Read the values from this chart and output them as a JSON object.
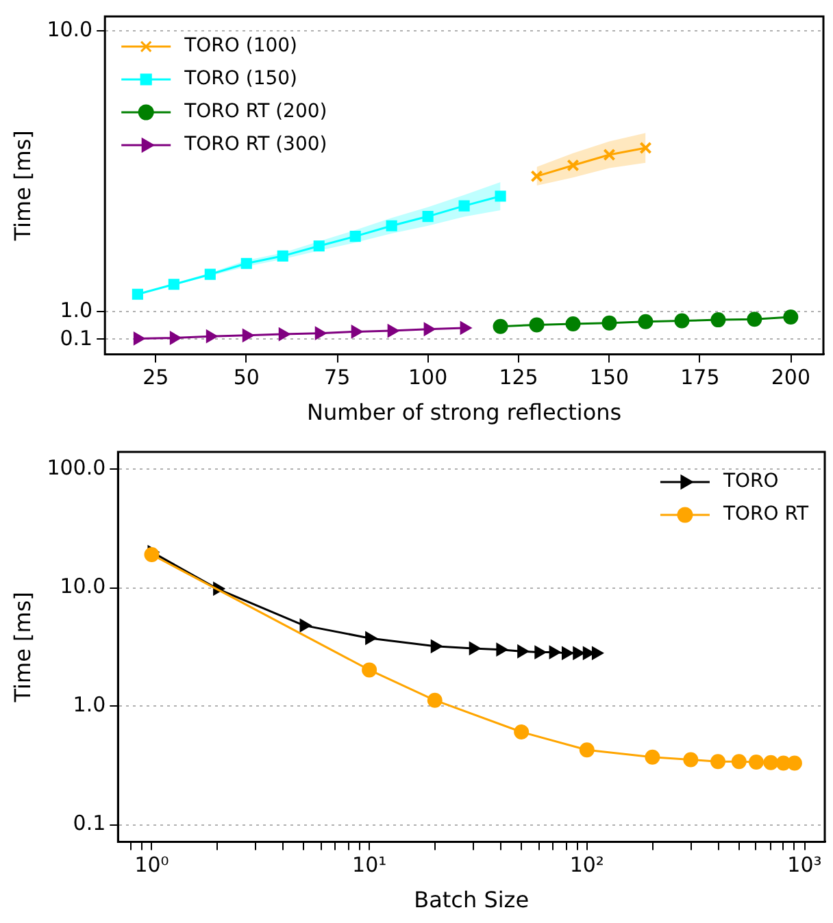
{
  "chart_data": [
    {
      "type": "line",
      "xlabel": "Number of strong reflections",
      "ylabel": "Time [ms]",
      "xlim": [
        11,
        209
      ],
      "xticks": [
        25,
        50,
        75,
        100,
        125,
        150,
        175,
        200
      ],
      "ylim": [
        -0.38,
        10.47
      ],
      "yticks": [
        0.1,
        {
          "value": 1,
          "label": "1.0"
        },
        {
          "value": 10,
          "label": "10.0"
        }
      ],
      "grid": "y",
      "legend": "top left",
      "series": [
        {
          "name": "TORO (100)",
          "color": "#ffa500",
          "marker": "cross",
          "x": [
            130,
            140,
            150,
            160
          ],
          "values": [
            5.34,
            5.69,
            6.03,
            6.25
          ],
          "lower": [
            5.04,
            5.3,
            5.6,
            5.77
          ],
          "upper": [
            5.64,
            6.08,
            6.46,
            6.73
          ]
        },
        {
          "name": "TORO (150)",
          "color": "#00ffff",
          "marker": "square",
          "x": [
            20,
            30,
            40,
            50,
            60,
            70,
            80,
            90,
            100,
            110,
            120
          ],
          "values": [
            1.55,
            1.87,
            2.19,
            2.54,
            2.78,
            3.1,
            3.41,
            3.75,
            4.05,
            4.39,
            4.7
          ],
          "lower": [
            1.55,
            1.84,
            2.14,
            2.44,
            2.68,
            2.95,
            3.21,
            3.5,
            3.75,
            4.04,
            4.25
          ],
          "upper": [
            1.55,
            1.9,
            2.24,
            2.64,
            2.88,
            3.25,
            3.61,
            4.0,
            4.35,
            4.74,
            5.15
          ]
        },
        {
          "name": "TORO RT (200)",
          "color": "#008000",
          "marker": "circle",
          "x": [
            120,
            130,
            140,
            150,
            160,
            170,
            180,
            190,
            200
          ],
          "values": [
            0.52,
            0.57,
            0.6,
            0.63,
            0.67,
            0.7,
            0.73,
            0.75,
            0.82
          ]
        },
        {
          "name": "TORO RT (300)",
          "color": "#800080",
          "marker": "triangle",
          "x": [
            20,
            30,
            40,
            50,
            60,
            70,
            80,
            90,
            100,
            110
          ],
          "values": [
            0.13,
            0.15,
            0.2,
            0.23,
            0.27,
            0.3,
            0.35,
            0.38,
            0.43,
            0.47
          ]
        }
      ]
    },
    {
      "type": "line",
      "xlabel": "Batch Size",
      "ylabel": "Time [ms]",
      "log": "xy",
      "xlim": [
        0.716,
        1239
      ],
      "xticks": [
        {
          "value": 0.8,
          "label": null
        },
        {
          "value": 0.9,
          "label": null
        },
        {
          "value": 1,
          "label": "10⁰"
        },
        {
          "value": 2,
          "label": null
        },
        {
          "value": 3,
          "label": null
        },
        {
          "value": 4,
          "label": null
        },
        {
          "value": 5,
          "label": null
        },
        {
          "value": 6,
          "label": null
        },
        {
          "value": 7,
          "label": null
        },
        {
          "value": 8,
          "label": null
        },
        {
          "value": 9,
          "label": null
        },
        {
          "value": 10,
          "label": "10¹"
        },
        {
          "value": 20,
          "label": null
        },
        {
          "value": 30,
          "label": null
        },
        {
          "value": 40,
          "label": null
        },
        {
          "value": 50,
          "label": null
        },
        {
          "value": 60,
          "label": null
        },
        {
          "value": 70,
          "label": null
        },
        {
          "value": 80,
          "label": null
        },
        {
          "value": 90,
          "label": null
        },
        {
          "value": 100,
          "label": "10²"
        },
        {
          "value": 200,
          "label": null
        },
        {
          "value": 300,
          "label": null
        },
        {
          "value": 400,
          "label": null
        },
        {
          "value": 500,
          "label": null
        },
        {
          "value": 600,
          "label": null
        },
        {
          "value": 700,
          "label": null
        },
        {
          "value": 800,
          "label": null
        },
        {
          "value": 900,
          "label": null
        },
        {
          "value": 1000,
          "label": "10³"
        }
      ],
      "ylim": [
        0.0713,
        140
      ],
      "yticks": [
        0.1,
        {
          "value": 1,
          "label": "1.0"
        },
        {
          "value": 10,
          "label": "10.0"
        },
        {
          "value": 100,
          "label": "100.0"
        }
      ],
      "grid": "y",
      "legend": "top right",
      "series": [
        {
          "name": "TORO",
          "color": "#000000",
          "marker": "triangle",
          "x": [
            1,
            2,
            5,
            10,
            20,
            30,
            40,
            50,
            60,
            70,
            80,
            90,
            100,
            110
          ],
          "values": [
            20,
            9.8,
            4.8,
            3.75,
            3.2,
            3.07,
            3.0,
            2.9,
            2.85,
            2.85,
            2.8,
            2.8,
            2.8,
            2.8
          ]
        },
        {
          "name": "TORO RT",
          "color": "#ffa500",
          "marker": "circle",
          "x": [
            1,
            10,
            20,
            50,
            100,
            200,
            300,
            400,
            500,
            600,
            700,
            800,
            900
          ],
          "values": [
            19,
            2.02,
            1.12,
            0.605,
            0.426,
            0.371,
            0.353,
            0.34,
            0.34,
            0.337,
            0.333,
            0.33,
            0.33
          ]
        }
      ]
    }
  ]
}
